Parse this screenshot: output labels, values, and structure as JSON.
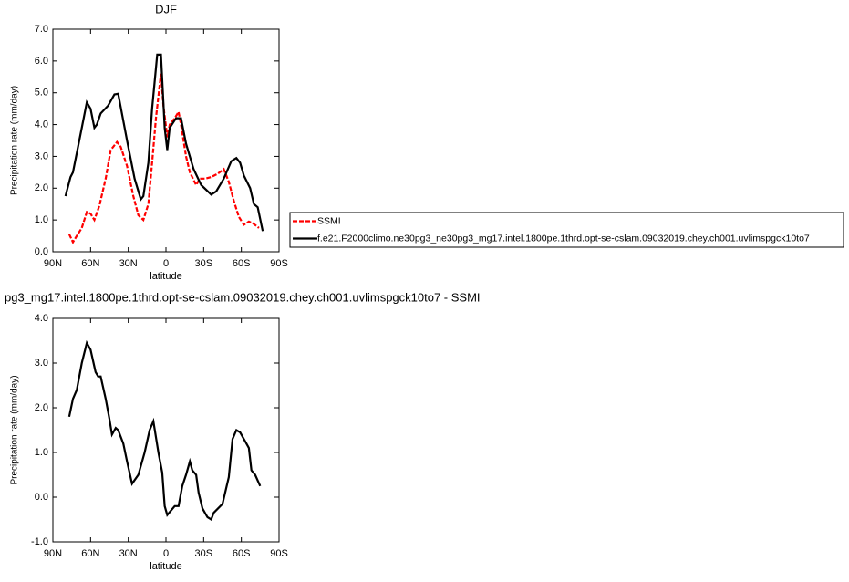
{
  "chart_data": [
    {
      "type": "line",
      "title": "DJF",
      "xlabel": "latitude",
      "ylabel": "Precipitation rate (mm/day)",
      "xlim": [
        90,
        -90
      ],
      "ylim": [
        0,
        7
      ],
      "xticks": [
        {
          "value": 90,
          "label": "90N"
        },
        {
          "value": 60,
          "label": "60N"
        },
        {
          "value": 30,
          "label": "30N"
        },
        0,
        {
          "value": -30,
          "label": "30S"
        },
        {
          "value": -60,
          "label": "60S"
        },
        {
          "value": -90,
          "label": "90S"
        }
      ],
      "yticks": [
        {
          "value": 0,
          "label": "0.0"
        },
        {
          "value": 1,
          "label": "1.0"
        },
        {
          "value": 2,
          "label": "2.0"
        },
        {
          "value": 3,
          "label": "3.0"
        },
        {
          "value": 4,
          "label": "4.0"
        },
        {
          "value": 5,
          "label": "5.0"
        },
        {
          "value": 6,
          "label": "6.0"
        },
        {
          "value": 7,
          "label": "7.0"
        }
      ],
      "legend": "right",
      "series": [
        {
          "name": "SSMI",
          "color": "#ff0000",
          "dashed": true,
          "x": [
            77,
            74,
            71,
            67,
            63,
            60,
            57,
            53,
            48,
            44,
            39,
            36,
            31,
            26,
            22,
            18,
            14,
            11,
            8,
            4,
            2,
            -1,
            -3,
            -7,
            -10,
            -12,
            -16,
            -19,
            -24,
            -27,
            -31,
            -36,
            -41,
            -46,
            -50,
            -54,
            -58,
            -62,
            -66,
            -69,
            -74
          ],
          "values": [
            0.55,
            0.3,
            0.5,
            0.75,
            1.25,
            1.2,
            1.0,
            1.45,
            2.3,
            3.2,
            3.45,
            3.3,
            2.7,
            1.75,
            1.15,
            1.0,
            1.5,
            2.8,
            4.2,
            5.6,
            4.6,
            3.6,
            4.0,
            4.2,
            4.4,
            4.0,
            3.0,
            2.5,
            2.1,
            2.3,
            2.3,
            2.35,
            2.45,
            2.6,
            2.2,
            1.6,
            1.1,
            0.85,
            0.95,
            0.9,
            0.75
          ]
        },
        {
          "name": "f.e21.F2000climo.ne30pg3_ne30pg3_mg17.intel.1800pe.1thrd.opt-se-cslam.09032019.chey.ch001.uvlimspgck10to7",
          "color": "#000000",
          "dashed": false,
          "x": [
            80,
            76,
            74,
            67,
            63,
            60,
            57,
            55,
            52,
            46,
            41,
            38,
            31,
            25,
            20,
            18,
            14,
            11,
            7,
            4,
            1,
            -1,
            -3,
            -8,
            -12,
            -16,
            -22,
            -28,
            -36,
            -40,
            -46,
            -52,
            -56,
            -59,
            -62,
            -67,
            -70,
            -73,
            -77
          ],
          "values": [
            1.75,
            2.35,
            2.5,
            3.9,
            4.7,
            4.5,
            3.9,
            4.0,
            4.35,
            4.6,
            4.95,
            4.97,
            3.5,
            2.3,
            1.65,
            1.75,
            2.8,
            4.5,
            6.2,
            6.2,
            3.9,
            3.2,
            3.9,
            4.2,
            4.2,
            3.4,
            2.6,
            2.1,
            1.8,
            1.9,
            2.3,
            2.85,
            2.95,
            2.8,
            2.4,
            2.0,
            1.5,
            1.4,
            0.65
          ]
        }
      ]
    },
    {
      "type": "line",
      "title": "pg3_mg17.intel.1800pe.1thrd.opt-se-cslam.09032019.chey.ch001.uvlimspgck10to7 - SSMI",
      "xlabel": "latitude",
      "ylabel": "Precipitation rate (mm/day)",
      "xlim": [
        90,
        -90
      ],
      "ylim": [
        -1,
        4
      ],
      "xticks": [
        {
          "value": 90,
          "label": "90N"
        },
        {
          "value": 60,
          "label": "60N"
        },
        {
          "value": 30,
          "label": "30N"
        },
        0,
        {
          "value": -30,
          "label": "30S"
        },
        {
          "value": -60,
          "label": "60S"
        },
        {
          "value": -90,
          "label": "90S"
        }
      ],
      "yticks": [
        {
          "value": -1,
          "label": "-1.0"
        },
        {
          "value": 0,
          "label": "0.0"
        },
        {
          "value": 1,
          "label": "1.0"
        },
        {
          "value": 2,
          "label": "2.0"
        },
        {
          "value": 3,
          "label": "3.0"
        },
        {
          "value": 4,
          "label": "4.0"
        }
      ],
      "series": [
        {
          "color": "#000000",
          "dashed": false,
          "x": [
            77,
            74,
            71,
            67,
            63,
            60,
            56,
            54,
            52,
            48,
            45,
            43,
            40,
            38,
            34,
            31,
            27,
            22,
            17,
            13,
            10,
            6,
            3,
            1,
            -1,
            -7,
            -10,
            -13,
            -16,
            -19,
            -21,
            -24,
            -26,
            -29,
            -33,
            -36,
            -38,
            -45,
            -50,
            -53,
            -56,
            -59,
            -64,
            -66,
            -68,
            -71,
            -75
          ],
          "values": [
            1.8,
            2.2,
            2.4,
            3.0,
            3.45,
            3.3,
            2.8,
            2.7,
            2.7,
            2.2,
            1.75,
            1.4,
            1.55,
            1.5,
            1.2,
            0.8,
            0.3,
            0.5,
            1.0,
            1.5,
            1.7,
            1.0,
            0.55,
            -0.2,
            -0.4,
            -0.2,
            -0.2,
            0.25,
            0.5,
            0.8,
            0.6,
            0.5,
            0.1,
            -0.25,
            -0.45,
            -0.5,
            -0.35,
            -0.15,
            0.45,
            1.3,
            1.5,
            1.45,
            1.2,
            1.1,
            0.6,
            0.5,
            0.25
          ]
        }
      ]
    }
  ]
}
